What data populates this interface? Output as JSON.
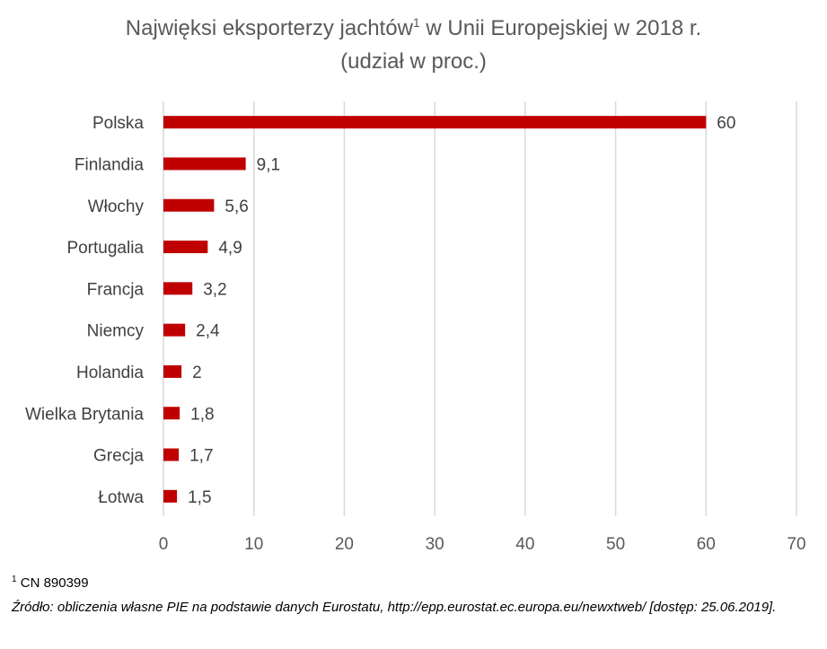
{
  "chart_data": {
    "type": "bar",
    "orientation": "horizontal",
    "title_main": "Najwięksi eksporterzy jachtów",
    "title_sup": "1",
    "title_rest": " w Unii Europejskiej w 2018 r.",
    "subtitle": "(udział w proc.)",
    "categories": [
      "Polska",
      "Finlandia",
      "Włochy",
      "Portugalia",
      "Francja",
      "Niemcy",
      "Holandia",
      "Wielka Brytania",
      "Grecja",
      "Łotwa"
    ],
    "values": [
      60,
      9.1,
      5.6,
      4.9,
      3.2,
      2.4,
      2,
      1.8,
      1.7,
      1.5
    ],
    "value_labels": [
      "60",
      "9,1",
      "5,6",
      "4,9",
      "3,2",
      "2,4",
      "2",
      "1,8",
      "1,7",
      "1,5"
    ],
    "xlim": [
      0,
      70
    ],
    "xticks": [
      0,
      10,
      20,
      30,
      40,
      50,
      60,
      70
    ],
    "xlabel": "",
    "ylabel": "",
    "grid": true,
    "bar_color": "#C00000",
    "grid_color": "#D9D9D9"
  },
  "footnote": {
    "sup": "1",
    "text": " CN 890399"
  },
  "source": "Źródło: obliczenia własne PIE na podstawie danych Eurostatu, http://epp.eurostat.ec.europa.eu/newxtweb/ [dostęp: 25.06.2019]."
}
